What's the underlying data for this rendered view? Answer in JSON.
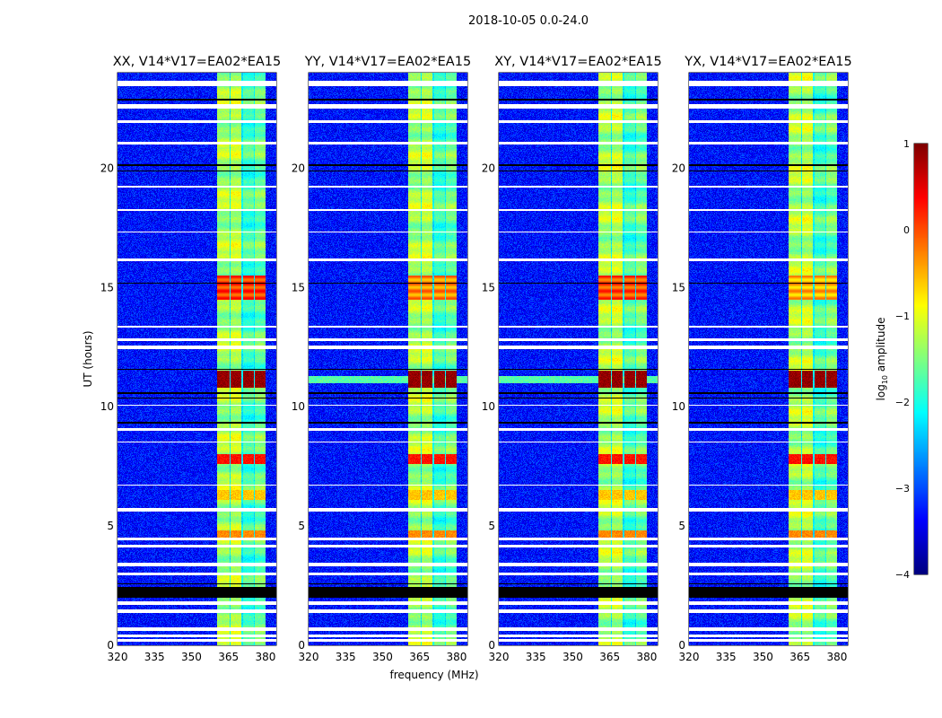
{
  "chart_data": {
    "type": "heatmap",
    "title": "2018-10-05 0.0-24.0",
    "xlabel": "frequency (MHz)",
    "ylabel": "UT (hours)",
    "xlim": [
      320,
      384.4
    ],
    "ylim": [
      0,
      24
    ],
    "xticks": [
      "320",
      "335",
      "350",
      "365",
      "380"
    ],
    "xtick_values": [
      320,
      335,
      350,
      365,
      380
    ],
    "yticks": [
      "0",
      "5",
      "10",
      "15",
      "20"
    ],
    "ytick_values": [
      0,
      5,
      10,
      15,
      20
    ],
    "panels": [
      {
        "title": "XX, V14*V17=EA02*EA15",
        "rfi_15h": 0.1,
        "broadband_11h": false
      },
      {
        "title": "YY, V14*V17=EA02*EA15",
        "rfi_15h": -0.3,
        "broadband_11h": true
      },
      {
        "title": "XY, V14*V17=EA02*EA15",
        "rfi_15h": 0.0,
        "broadband_11h": true
      },
      {
        "title": "YX, V14*V17=EA02*EA15",
        "rfi_15h": -0.5,
        "broadband_11h": false
      }
    ],
    "background_level": -3.3,
    "band_channels": [
      {
        "fmin": 360.5,
        "fmax": 365.4,
        "level": -1.3
      },
      {
        "fmin": 366.0,
        "fmax": 370.2,
        "level": -1.2
      },
      {
        "fmin": 370.8,
        "fmax": 375.2,
        "level": -1.8
      },
      {
        "fmin": 375.6,
        "fmax": 380.0,
        "level": -1.6
      }
    ],
    "strong_rfi_hours": [
      {
        "start": 10.8,
        "end": 11.5,
        "level": 0.9
      },
      {
        "start": 7.6,
        "end": 8.0,
        "level": 0.3
      },
      {
        "start": 4.5,
        "end": 4.8,
        "level": -0.3
      },
      {
        "start": 6.1,
        "end": 6.5,
        "level": -0.6
      }
    ],
    "flagged_white_hours": [
      [
        0.15,
        0.25
      ],
      [
        0.35,
        0.45
      ],
      [
        0.6,
        0.75
      ],
      [
        1.35,
        1.5
      ],
      [
        1.7,
        1.85
      ],
      [
        2.95,
        3.05
      ],
      [
        3.3,
        3.45
      ],
      [
        4.1,
        4.2
      ],
      [
        4.4,
        4.5
      ],
      [
        5.6,
        5.75
      ],
      [
        6.7,
        6.75
      ],
      [
        8.5,
        8.55
      ],
      [
        9.0,
        9.1
      ],
      [
        10.05,
        10.1
      ],
      [
        12.4,
        12.55
      ],
      [
        12.75,
        12.85
      ],
      [
        13.3,
        13.4
      ],
      [
        16.1,
        16.2
      ],
      [
        17.3,
        17.35
      ],
      [
        18.2,
        18.3
      ],
      [
        19.2,
        19.25
      ],
      [
        21.0,
        21.1
      ],
      [
        21.9,
        22.0
      ],
      [
        22.5,
        22.7
      ],
      [
        23.45,
        23.65
      ]
    ],
    "flagged_black_hours": [
      [
        2.0,
        2.45
      ],
      [
        2.55,
        2.6
      ],
      [
        9.3,
        9.35
      ],
      [
        10.35,
        10.4
      ],
      [
        10.55,
        10.6
      ],
      [
        11.55,
        11.6
      ],
      [
        15.15,
        15.2
      ],
      [
        19.85,
        19.9
      ],
      [
        20.1,
        20.15
      ],
      [
        22.85,
        22.9
      ]
    ],
    "colorbar": {
      "label_main": "log",
      "label_sub": "10",
      "label_rest": " amplitude",
      "range": [
        -4,
        1
      ],
      "ticks": [
        "−4",
        "−3",
        "−2",
        "−1",
        "0",
        "1"
      ],
      "tick_values": [
        -4,
        -3,
        -2,
        -1,
        0,
        1
      ],
      "colormap": "jet"
    }
  }
}
